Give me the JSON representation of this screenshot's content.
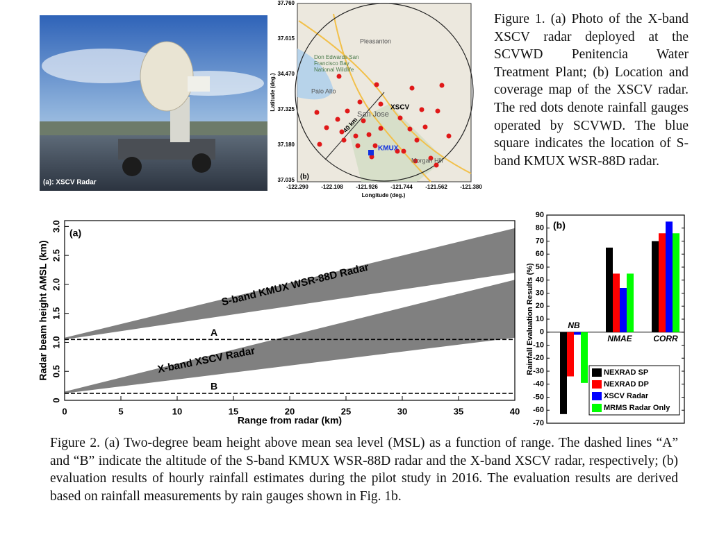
{
  "figure1": {
    "photo_label": "(a): XSCV Radar",
    "map": {
      "label": "(b)",
      "xlabel": "Longitude (deg.)",
      "ylabel": "Latitude (deg.)",
      "lat_ticks": [
        "37.760",
        "37.615",
        "34.470",
        "37.325",
        "37.180",
        "37.035"
      ],
      "lon_ticks": [
        "-122.290",
        "-122.108",
        "-121.926",
        "-121.744",
        "-121.562",
        "-121.380"
      ],
      "radar_xscv": "XSCV",
      "radar_kmux": "KMUX",
      "range_label": "40 km",
      "places": [
        "Pleasanton",
        "Palo Alto",
        "San Jose",
        "Morgan Hill",
        "Don Edwards San Francisco Bay National Wildlife"
      ]
    },
    "caption": "Figure 1. (a) Photo of the X-band XSCV radar deployed at the SCVWD Penitencia Water Treatment Plant; (b) Location and coverage map of the XSCV radar. The red dots denote rainfall gauges operated by SCVWD. The blue square indicates the location of S-band KMUX WSR-88D radar."
  },
  "chart_data": [
    {
      "type": "band",
      "title": "(a)",
      "xlabel": "Range from radar (km)",
      "ylabel": "Radar beam height AMSL (km)",
      "xlim": [
        0,
        40
      ],
      "ylim": [
        0,
        3.1
      ],
      "xticks": [
        0,
        5,
        10,
        15,
        20,
        25,
        30,
        35,
        40
      ],
      "yticks": [
        0,
        0.5,
        {
          "value": 1,
          "label": "1.0"
        },
        1.5,
        {
          "value": 2,
          "label": "2.0"
        },
        2.5,
        {
          "value": 3,
          "label": "3.0"
        }
      ],
      "series": [
        {
          "name": "S-band KMUX WSR-88D Radar",
          "color": "#808080",
          "x": [
            0,
            40
          ],
          "upper": [
            1.08,
            2.97
          ],
          "lower": [
            1.05,
            2.2
          ]
        },
        {
          "name": "X-band XSCV Radar",
          "color": "#808080",
          "x": [
            0,
            40
          ],
          "upper": [
            0.15,
            2.08
          ],
          "lower": [
            0.12,
            1.08
          ]
        }
      ],
      "hlines": [
        {
          "label": "A",
          "value": 1.05
        },
        {
          "label": "B",
          "value": 0.12
        }
      ]
    },
    {
      "type": "bar",
      "title": "(b)",
      "ylabel": "Rainfall Evaluation Results (%)",
      "categories": [
        "NB",
        "NMAE",
        "CORR"
      ],
      "ylim": [
        -70,
        90
      ],
      "yticks": [
        -70,
        -60,
        -50,
        -40,
        -30,
        -20,
        -10,
        0,
        10,
        20,
        30,
        40,
        50,
        60,
        70,
        80,
        90
      ],
      "legend": "lower right",
      "series": [
        {
          "name": "NEXRAD SP",
          "color": "#000000",
          "values": [
            -63,
            65,
            70
          ]
        },
        {
          "name": "NEXRAD DP",
          "color": "#ff0000",
          "values": [
            -34,
            45,
            76
          ]
        },
        {
          "name": "XSCV Radar",
          "color": "#0000ff",
          "values": [
            -2,
            34,
            85
          ]
        },
        {
          "name": "MRMS Radar Only",
          "color": "#00ff00",
          "values": [
            -39,
            45,
            76
          ]
        }
      ]
    }
  ],
  "figure2": {
    "caption": "Figure 2. (a) Two-degree beam height above mean sea level (MSL) as a function of range. The dashed lines “A” and “B” indicate the altitude of the S-band KMUX WSR-88D radar and the X-band XSCV radar, respectively; (b) evaluation results of hourly rainfall estimates during the pilot study in 2016. The evaluation results are derived based on rainfall measurements by rain gauges shown in Fig. 1b."
  }
}
